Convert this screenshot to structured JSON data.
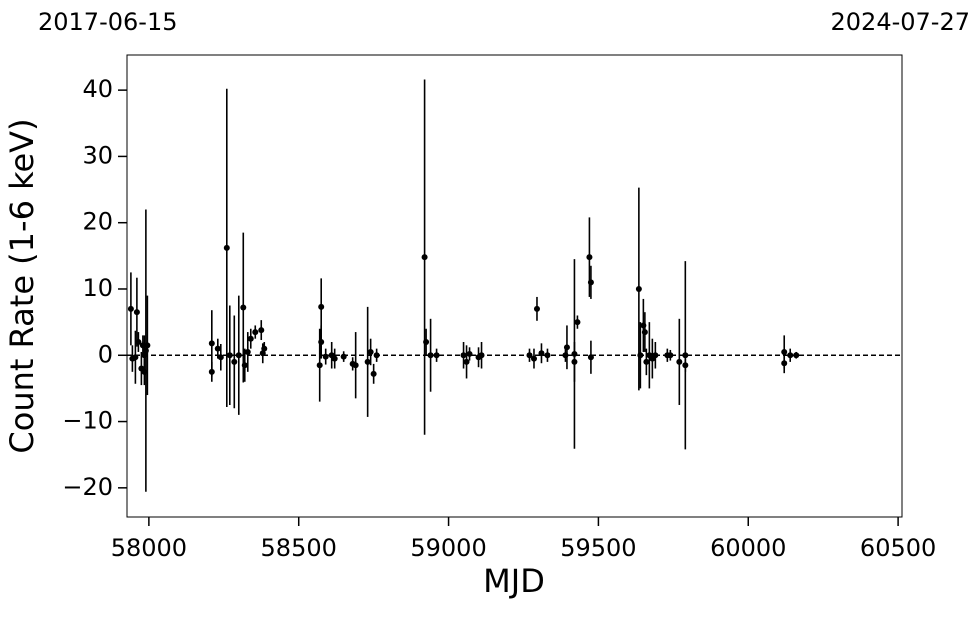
{
  "chart_data": {
    "type": "errorbar",
    "xlabel": "MJD",
    "ylabel": "Count Rate (1-6 keV)",
    "top_left_label": "2017-06-15",
    "top_right_label": "2024-07-27",
    "xlim": [
      57927,
      60513
    ],
    "ylim": [
      -24.4,
      45.3
    ],
    "xticks": [
      58000,
      58500,
      59000,
      59500,
      60000,
      60500
    ],
    "yticks": [
      {
        "value": -20,
        "label": "−20"
      },
      {
        "value": -10,
        "label": "−10"
      },
      0,
      10,
      20,
      30,
      40
    ],
    "hline": 0,
    "color": "#000000",
    "x": [
      57940,
      57945,
      57955,
      57960,
      57965,
      57975,
      57980,
      57985,
      57985,
      57990,
      57995,
      58210,
      58210,
      58230,
      58240,
      58260,
      58270,
      58285,
      58300,
      58315,
      58320,
      58330,
      58340,
      58355,
      58375,
      58380,
      58385,
      58570,
      58575,
      58575,
      58590,
      58610,
      58620,
      58650,
      58680,
      58690,
      58730,
      58740,
      58750,
      58760,
      58920,
      58925,
      58940,
      58960,
      59050,
      59060,
      59070,
      59100,
      59110,
      59270,
      59285,
      59295,
      59310,
      59330,
      59390,
      59395,
      59420,
      59420,
      59430,
      59470,
      59475,
      59475,
      59635,
      59640,
      59650,
      59655,
      59660,
      59670,
      59680,
      59690,
      59730,
      59740,
      59770,
      59790,
      59790,
      60120,
      60120,
      60140,
      60160
    ],
    "values": [
      7,
      -0.5,
      -0.3,
      6.5,
      2,
      -2,
      1.5,
      -2.5,
      0,
      0.7,
      1.5,
      1.8,
      -2.5,
      1,
      -0.3,
      16.2,
      0,
      -1,
      0,
      7.2,
      -1.5,
      0.5,
      2.5,
      3.5,
      3.8,
      0.3,
      1,
      -1.5,
      7.3,
      2,
      -0.2,
      0,
      -0.5,
      -0.2,
      -1.3,
      -1.5,
      -1,
      0.5,
      -2.8,
      0,
      14.8,
      2,
      0,
      0,
      0,
      -1,
      0.2,
      -0.3,
      0,
      0,
      -0.5,
      7,
      0.3,
      0,
      0,
      1.2,
      0.2,
      -1,
      5,
      14.8,
      11,
      -0.3,
      10,
      0,
      4.5,
      3.5,
      -1,
      0,
      -0.5,
      0,
      0,
      0,
      -1,
      0,
      -1.5,
      0.5,
      -1.2,
      0,
      0
    ],
    "errors": [
      5.5,
      2,
      4,
      5.2,
      1.5,
      2.5,
      1.5,
      2,
      3,
      21.3,
      7.5,
      5,
      1.5,
      1.5,
      2,
      24,
      7.5,
      7,
      9,
      11.3,
      2.5,
      3,
      1.5,
      1,
      1.5,
      1.5,
      1,
      5.5,
      4.3,
      2.5,
      1.2,
      2,
      1.5,
      0.8,
      1,
      5,
      8.3,
      2,
      1.5,
      1,
      26.8,
      2,
      5.5,
      1,
      2,
      2.5,
      1,
      1.5,
      2,
      1,
      1.5,
      1.8,
      1.5,
      1,
      1,
      3.3,
      14.3,
      3,
      1,
      6,
      2.5,
      2.5,
      15.3,
      5,
      4,
      3,
      2,
      5,
      3,
      2,
      1,
      0.8,
      6.5,
      14.2,
      1,
      2.5,
      1.5,
      1,
      0.5
    ]
  }
}
